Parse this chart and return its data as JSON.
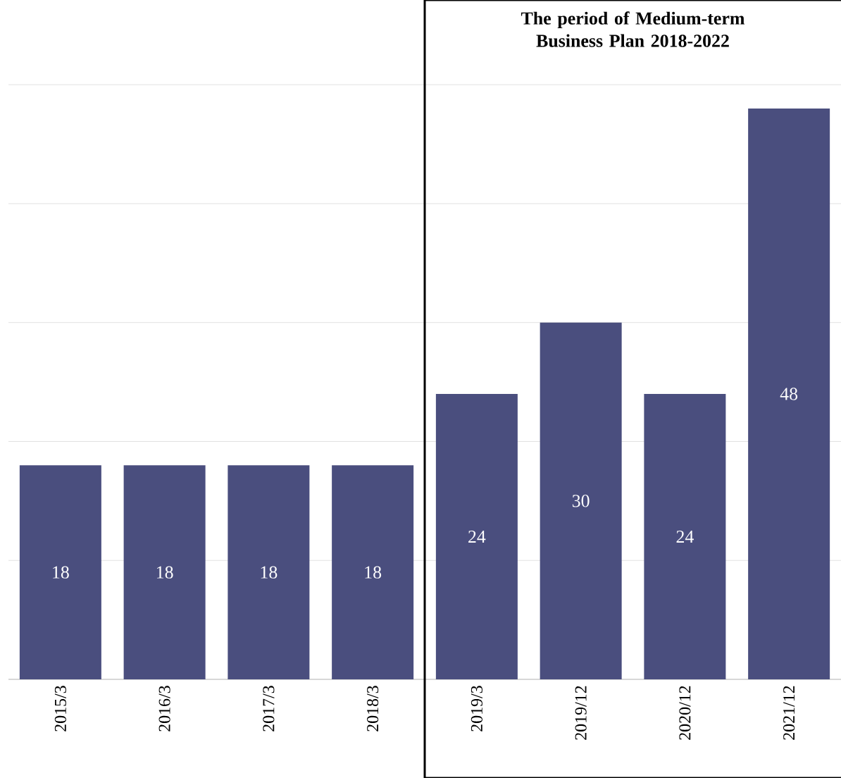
{
  "chart_data": {
    "type": "bar",
    "categories": [
      "2015/3",
      "2016/3",
      "2017/3",
      "2018/3",
      "2019/3",
      "2019/12",
      "2020/12",
      "2021/12"
    ],
    "values": [
      18,
      18,
      18,
      18,
      24,
      30,
      24,
      48
    ],
    "color": "#4a4e7e",
    "grid": "y",
    "data_labels": true,
    "tick_labels": "x",
    "annotations": [
      "The period of Medium-term Business Plan 2018-2022"
    ]
  }
}
